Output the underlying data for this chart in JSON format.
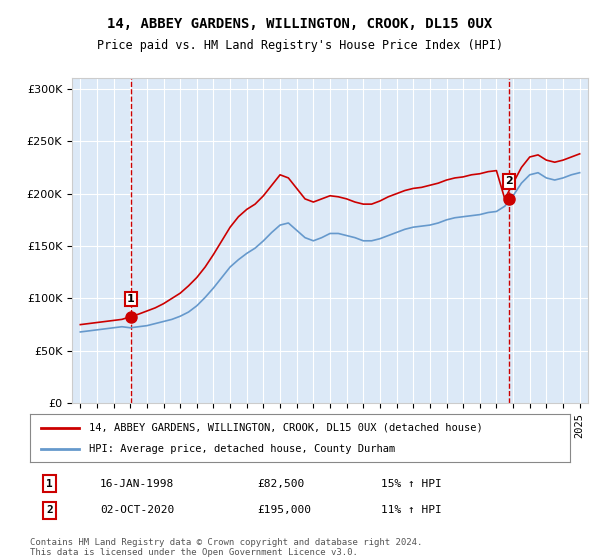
{
  "title": "14, ABBEY GARDENS, WILLINGTON, CROOK, DL15 0UX",
  "subtitle": "Price paid vs. HM Land Registry's House Price Index (HPI)",
  "ylabel": "",
  "legend_line1": "14, ABBEY GARDENS, WILLINGTON, CROOK, DL15 0UX (detached house)",
  "legend_line2": "HPI: Average price, detached house, County Durham",
  "annotation1_label": "1",
  "annotation1_date": "16-JAN-1998",
  "annotation1_price": "£82,500",
  "annotation1_hpi": "15% ↑ HPI",
  "annotation2_label": "2",
  "annotation2_date": "02-OCT-2020",
  "annotation2_price": "£195,000",
  "annotation2_hpi": "11% ↑ HPI",
  "copyright": "Contains HM Land Registry data © Crown copyright and database right 2024.\nThis data is licensed under the Open Government Licence v3.0.",
  "bg_color": "#dce9f7",
  "plot_bg": "#dce9f7",
  "red_color": "#cc0000",
  "blue_color": "#6699cc",
  "marker1_x": 1998.04,
  "marker1_y": 82500,
  "marker2_x": 2020.75,
  "marker2_y": 195000,
  "ylim": [
    0,
    310000
  ],
  "xlim_start": 1994.5,
  "xlim_end": 2025.5
}
